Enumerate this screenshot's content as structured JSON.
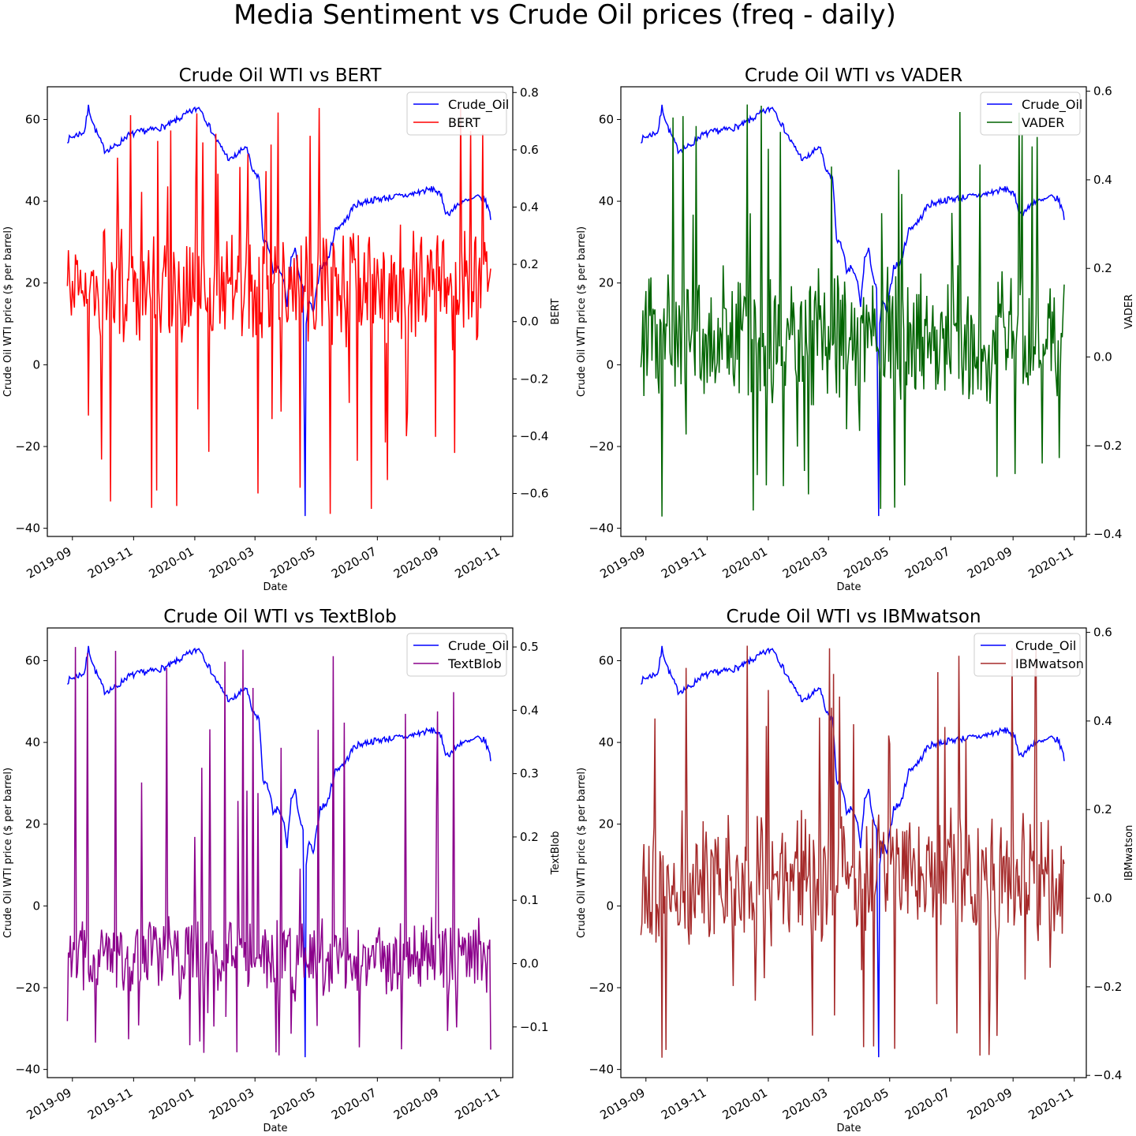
{
  "figure_title": "Media Sentiment vs Crude Oil prices (freq - daily)",
  "colors": {
    "crude_oil": "#0000ff",
    "BERT": "#ff0000",
    "VADER": "#006400",
    "TextBlob": "#8b008b",
    "IBMwatson": "#a52a2a"
  },
  "chart_data": [
    {
      "type": "line",
      "title": "Crude Oil WTI vs BERT",
      "xlabel": "Date",
      "ylabel": "Crude Oil WTI price ($ per barrel)",
      "y2label": "BERT",
      "xlim": [
        "2019-08-07",
        "2020-11-13"
      ],
      "x_ticks": [
        "2019-09",
        "2019-11",
        "2020-01",
        "2020-03",
        "2020-05",
        "2020-07",
        "2020-09",
        "2020-11"
      ],
      "ylim": [
        -42,
        68
      ],
      "y_ticks": [
        -40,
        -20,
        0,
        20,
        40,
        60
      ],
      "y2lim": [
        -0.75,
        0.82
      ],
      "y2_ticks": [
        -0.6,
        -0.4,
        -0.2,
        0.0,
        0.2,
        0.4,
        0.6,
        0.8
      ],
      "legend": [
        "Crude_Oil",
        "BERT"
      ],
      "legend_position": "upper right",
      "grid": false,
      "series": [
        {
          "name": "Crude_Oil",
          "axis": "left",
          "color": "#0000ff",
          "x_start": "2019-08-27",
          "x_end": "2020-10-22"
        },
        {
          "name": "BERT",
          "axis": "right",
          "color": "#ff0000",
          "x_start": "2019-08-27",
          "x_end": "2020-10-22"
        }
      ]
    },
    {
      "type": "line",
      "title": "Crude Oil WTI vs VADER",
      "xlabel": "Date",
      "ylabel": "Crude Oil WTI price ($ per barrel)",
      "y2label": "VADER",
      "xlim": [
        "2019-08-07",
        "2020-11-13"
      ],
      "x_ticks": [
        "2019-09",
        "2019-11",
        "2020-01",
        "2020-03",
        "2020-05",
        "2020-07",
        "2020-09",
        "2020-11"
      ],
      "ylim": [
        -42,
        68
      ],
      "y_ticks": [
        -40,
        -20,
        0,
        20,
        40,
        60
      ],
      "y2lim": [
        -0.405,
        0.61
      ],
      "y2_ticks": [
        -0.4,
        -0.2,
        0.0,
        0.2,
        0.4,
        0.6
      ],
      "legend": [
        "Crude_Oil",
        "VADER"
      ],
      "legend_position": "upper right",
      "grid": false,
      "series": [
        {
          "name": "Crude_Oil",
          "axis": "left",
          "color": "#0000ff",
          "x_start": "2019-08-27",
          "x_end": "2020-10-22"
        },
        {
          "name": "VADER",
          "axis": "right",
          "color": "#006400",
          "x_start": "2019-08-27",
          "x_end": "2020-10-22"
        }
      ]
    },
    {
      "type": "line",
      "title": "Crude Oil WTI vs TextBlob",
      "xlabel": "Date",
      "ylabel": "Crude Oil WTI price ($ per barrel)",
      "y2label": "TextBlob",
      "xlim": [
        "2019-08-07",
        "2020-11-13"
      ],
      "x_ticks": [
        "2019-09",
        "2019-11",
        "2020-01",
        "2020-03",
        "2020-05",
        "2020-07",
        "2020-09",
        "2020-11"
      ],
      "ylim": [
        -42,
        68
      ],
      "y_ticks": [
        -40,
        -20,
        0,
        20,
        40,
        60
      ],
      "y2lim": [
        -0.18,
        0.53
      ],
      "y2_ticks": [
        -0.1,
        0.0,
        0.1,
        0.2,
        0.3,
        0.4,
        0.5
      ],
      "legend": [
        "Crude_Oil",
        "TextBlob"
      ],
      "legend_position": "upper right",
      "grid": false,
      "series": [
        {
          "name": "Crude_Oil",
          "axis": "left",
          "color": "#0000ff",
          "x_start": "2019-08-27",
          "x_end": "2020-10-22"
        },
        {
          "name": "TextBlob",
          "axis": "right",
          "color": "#8b008b",
          "x_start": "2019-08-27",
          "x_end": "2020-10-22"
        }
      ]
    },
    {
      "type": "line",
      "title": "Crude Oil WTI vs IBMwatson",
      "xlabel": "Date",
      "ylabel": "Crude Oil WTI price ($ per barrel)",
      "y2label": "IBMwatson",
      "xlim": [
        "2019-08-07",
        "2020-11-13"
      ],
      "x_ticks": [
        "2019-09",
        "2019-11",
        "2020-01",
        "2020-03",
        "2020-05",
        "2020-07",
        "2020-09",
        "2020-11"
      ],
      "ylim": [
        -42,
        68
      ],
      "y_ticks": [
        -40,
        -20,
        0,
        20,
        40,
        60
      ],
      "y2lim": [
        -0.405,
        0.61
      ],
      "y2_ticks": [
        -0.4,
        -0.2,
        0.0,
        0.2,
        0.4,
        0.6
      ],
      "legend": [
        "Crude_Oil",
        "IBMwatson"
      ],
      "legend_position": "upper right",
      "grid": false,
      "series": [
        {
          "name": "Crude_Oil",
          "axis": "left",
          "color": "#0000ff",
          "x_start": "2019-08-27",
          "x_end": "2020-10-22"
        },
        {
          "name": "IBMwatson",
          "axis": "right",
          "color": "#a52a2a",
          "x_start": "2019-08-27",
          "x_end": "2020-10-22"
        }
      ]
    }
  ],
  "crude_oil_anchors": [
    [
      "2019-08-27",
      55
    ],
    [
      "2019-09-03",
      56
    ],
    [
      "2019-09-13",
      57
    ],
    [
      "2019-09-17",
      63
    ],
    [
      "2019-09-23",
      58
    ],
    [
      "2019-10-03",
      52.5
    ],
    [
      "2019-10-15",
      53.5
    ],
    [
      "2019-10-25",
      56
    ],
    [
      "2019-11-08",
      57
    ],
    [
      "2019-11-20",
      57.5
    ],
    [
      "2019-12-05",
      58.5
    ],
    [
      "2019-12-15",
      60
    ],
    [
      "2019-12-25",
      61.5
    ],
    [
      "2020-01-06",
      63
    ],
    [
      "2020-01-15",
      58.5
    ],
    [
      "2020-01-25",
      54
    ],
    [
      "2020-02-05",
      50
    ],
    [
      "2020-02-15",
      52
    ],
    [
      "2020-02-21",
      53.5
    ],
    [
      "2020-02-28",
      47
    ],
    [
      "2020-03-05",
      46
    ],
    [
      "2020-03-09",
      31
    ],
    [
      "2020-03-16",
      28
    ],
    [
      "2020-03-19",
      22
    ],
    [
      "2020-03-24",
      24
    ],
    [
      "2020-03-30",
      20
    ],
    [
      "2020-04-02",
      14.5
    ],
    [
      "2020-04-06",
      26
    ],
    [
      "2020-04-10",
      28
    ],
    [
      "2020-04-15",
      21
    ],
    [
      "2020-04-18",
      18
    ],
    [
      "2020-04-20",
      -37
    ],
    [
      "2020-04-21",
      10
    ],
    [
      "2020-04-24",
      16
    ],
    [
      "2020-04-28",
      12.5
    ],
    [
      "2020-05-05",
      24
    ],
    [
      "2020-05-12",
      25
    ],
    [
      "2020-05-20",
      33
    ],
    [
      "2020-05-31",
      35.5
    ],
    [
      "2020-06-08",
      39
    ],
    [
      "2020-06-20",
      40
    ],
    [
      "2020-07-01",
      40.5
    ],
    [
      "2020-07-15",
      41
    ],
    [
      "2020-08-01",
      41.5
    ],
    [
      "2020-08-15",
      42.5
    ],
    [
      "2020-08-27",
      43
    ],
    [
      "2020-09-03",
      41
    ],
    [
      "2020-09-08",
      36.8
    ],
    [
      "2020-09-15",
      38
    ],
    [
      "2020-09-22",
      40
    ],
    [
      "2020-09-30",
      40
    ],
    [
      "2020-10-08",
      41
    ],
    [
      "2020-10-16",
      40.5
    ],
    [
      "2020-10-20",
      38
    ],
    [
      "2020-10-22",
      35.8
    ]
  ]
}
